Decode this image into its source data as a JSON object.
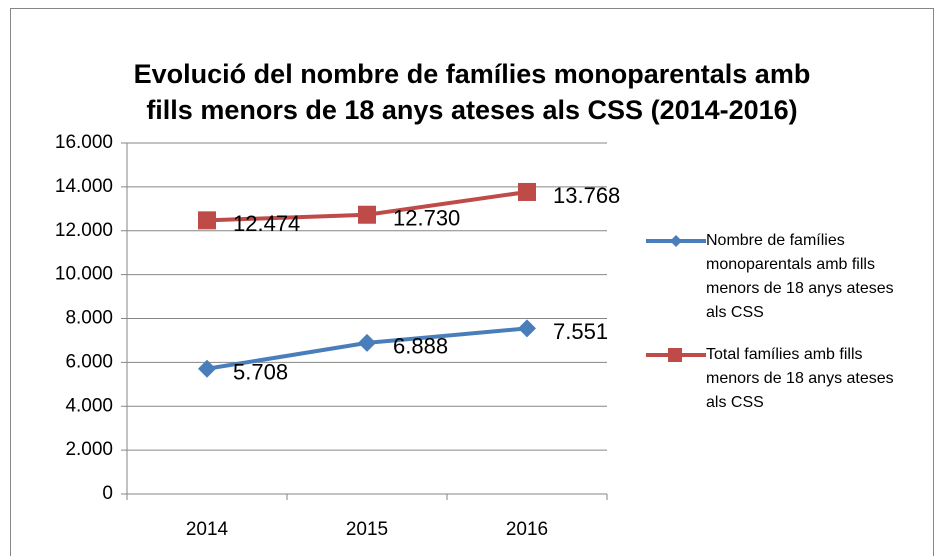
{
  "chart_data": {
    "type": "line",
    "title": "Evolució del nombre de famílies monoparentals amb fills menors de 18 anys ateses als CSS (2014-2016)",
    "categories": [
      "2014",
      "2015",
      "2016"
    ],
    "series": [
      {
        "name": "Nombre de famílies monoparentals amb fills menors de 18 anys ateses als CSS",
        "color": "#4a7ebb",
        "marker": "diamond",
        "values": [
          5708,
          6888,
          7551
        ],
        "value_labels": [
          "5.708",
          "6.888",
          "7.551"
        ]
      },
      {
        "name": "Total famílies amb fills menors de 18 anys ateses als CSS",
        "color": "#be4b48",
        "marker": "square",
        "values": [
          12474,
          12730,
          13768
        ],
        "value_labels": [
          "12.474",
          "12.730",
          "13.768"
        ]
      }
    ],
    "ylim": [
      0,
      16000
    ],
    "yticks": [
      0,
      {
        "value": 2000,
        "label": "2.000"
      },
      {
        "value": 4000,
        "label": "4.000"
      },
      {
        "value": 6000,
        "label": "6.000"
      },
      {
        "value": 8000,
        "label": "8.000"
      },
      {
        "value": 10000,
        "label": "10.000"
      },
      {
        "value": 12000,
        "label": "12.000"
      },
      {
        "value": 14000,
        "label": "14.000"
      },
      {
        "value": 16000,
        "label": "16.000"
      }
    ],
    "grid": true,
    "legend": "right"
  }
}
